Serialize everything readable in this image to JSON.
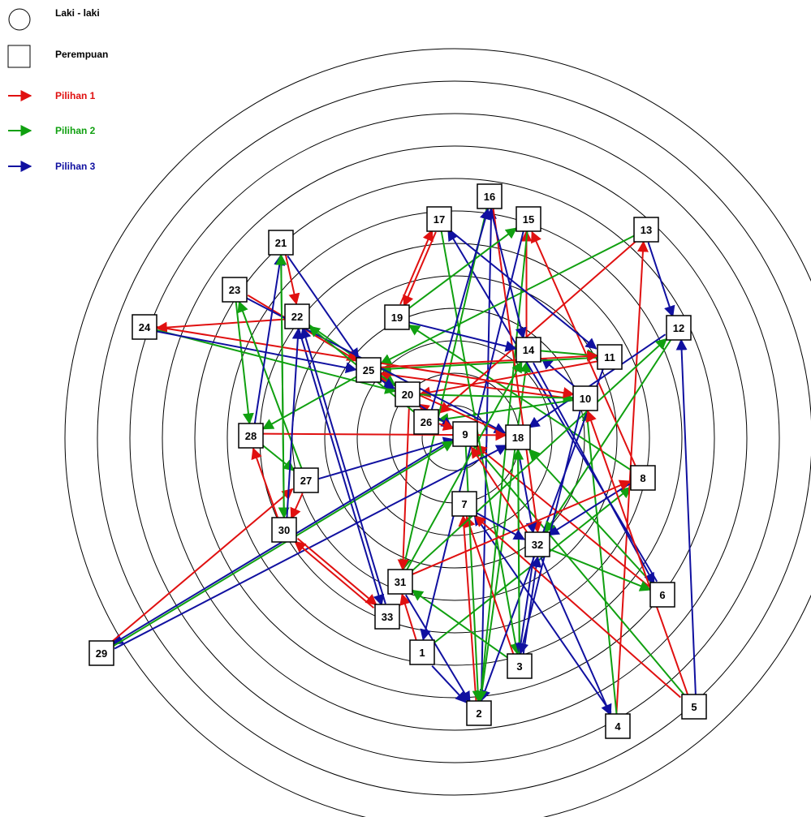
{
  "legend": {
    "male_label": "Laki - laki",
    "female_label": "Perempuan",
    "choice1_label": "Pilihan 1",
    "choice2_label": "Pilihan 2",
    "choice3_label": "Pilihan 3"
  },
  "colors": {
    "choice1": "#e01010",
    "choice2": "#10a010",
    "choice3": "#1010a0",
    "ring": "#000000",
    "node_fill": "#ffffff",
    "node_stroke": "#000000"
  },
  "nodes": [
    {
      "id": "1"
    },
    {
      "id": "2"
    },
    {
      "id": "3"
    },
    {
      "id": "4"
    },
    {
      "id": "5"
    },
    {
      "id": "6"
    },
    {
      "id": "7"
    },
    {
      "id": "8"
    },
    {
      "id": "9"
    },
    {
      "id": "10"
    },
    {
      "id": "11"
    },
    {
      "id": "12"
    },
    {
      "id": "13"
    },
    {
      "id": "14"
    },
    {
      "id": "15"
    },
    {
      "id": "16"
    },
    {
      "id": "17"
    },
    {
      "id": "18"
    },
    {
      "id": "19"
    },
    {
      "id": "20"
    },
    {
      "id": "21"
    },
    {
      "id": "22"
    },
    {
      "id": "23"
    },
    {
      "id": "24"
    },
    {
      "id": "25"
    },
    {
      "id": "26"
    },
    {
      "id": "27"
    },
    {
      "id": "28"
    },
    {
      "id": "29"
    },
    {
      "id": "30"
    },
    {
      "id": "31"
    },
    {
      "id": "32"
    },
    {
      "id": "33"
    }
  ],
  "edges": [
    {
      "from": "1",
      "to": "31",
      "choice": 1
    },
    {
      "from": "1",
      "to": "8",
      "choice": 2
    },
    {
      "from": "1",
      "to": "2",
      "choice": 3
    },
    {
      "from": "2",
      "to": "7",
      "choice": 1
    },
    {
      "from": "2",
      "to": "14",
      "choice": 2
    },
    {
      "from": "2",
      "to": "16",
      "choice": 3
    },
    {
      "from": "3",
      "to": "7",
      "choice": 1
    },
    {
      "from": "3",
      "to": "31",
      "choice": 2
    },
    {
      "from": "3",
      "to": "32",
      "choice": 3
    },
    {
      "from": "4",
      "to": "13",
      "choice": 1
    },
    {
      "from": "4",
      "to": "10",
      "choice": 2
    },
    {
      "from": "4",
      "to": "7",
      "choice": 3
    },
    {
      "from": "5",
      "to": "7",
      "choice": 1
    },
    {
      "from": "5",
      "to": "9",
      "choice": 2
    },
    {
      "from": "5",
      "to": "12",
      "choice": 3
    },
    {
      "from": "6",
      "to": "9",
      "choice": 1
    },
    {
      "from": "6",
      "to": "18",
      "choice": 2
    },
    {
      "from": "6",
      "to": "17",
      "choice": 3
    },
    {
      "from": "8",
      "to": "15",
      "choice": 1
    },
    {
      "from": "8",
      "to": "19",
      "choice": 2
    },
    {
      "from": "8",
      "to": "32",
      "choice": 3
    },
    {
      "from": "9",
      "to": "20",
      "choice": 1
    },
    {
      "from": "9",
      "to": "2",
      "choice": 2
    },
    {
      "from": "9",
      "to": "29",
      "choice": 3
    },
    {
      "from": "10",
      "to": "25",
      "choice": 1
    },
    {
      "from": "10",
      "to": "26",
      "choice": 2
    },
    {
      "from": "10",
      "to": "14",
      "choice": 3
    },
    {
      "from": "11",
      "to": "20",
      "choice": 1
    },
    {
      "from": "11",
      "to": "25",
      "choice": 2
    },
    {
      "from": "11",
      "to": "2",
      "choice": 3
    },
    {
      "from": "12",
      "to": "18",
      "choice": 3
    },
    {
      "from": "12",
      "to": "32",
      "choice": 2
    },
    {
      "from": "13",
      "to": "26",
      "choice": 1
    },
    {
      "from": "13",
      "to": "25",
      "choice": 2
    },
    {
      "from": "13",
      "to": "12",
      "choice": 3
    },
    {
      "from": "14",
      "to": "15",
      "choice": 1
    },
    {
      "from": "14",
      "to": "11",
      "choice": 2
    },
    {
      "from": "14",
      "to": "6",
      "choice": 3
    },
    {
      "from": "15",
      "to": "2",
      "choice": 2
    },
    {
      "from": "15",
      "to": "1",
      "choice": 3
    },
    {
      "from": "16",
      "to": "32",
      "choice": 1
    },
    {
      "from": "16",
      "to": "31",
      "choice": 2
    },
    {
      "from": "16",
      "to": "14",
      "choice": 3
    },
    {
      "from": "17",
      "to": "19",
      "choice": 1
    },
    {
      "from": "17",
      "to": "3",
      "choice": 2
    },
    {
      "from": "17",
      "to": "11",
      "choice": 3
    },
    {
      "from": "18",
      "to": "25",
      "choice": 1
    },
    {
      "from": "18",
      "to": "3",
      "choice": 2
    },
    {
      "from": "18",
      "to": "32",
      "choice": 3
    },
    {
      "from": "19",
      "to": "17",
      "choice": 1
    },
    {
      "from": "19",
      "to": "15",
      "choice": 2
    },
    {
      "from": "19",
      "to": "14",
      "choice": 3
    },
    {
      "from": "20",
      "to": "31",
      "choice": 1
    },
    {
      "from": "20",
      "to": "10",
      "choice": 2
    },
    {
      "from": "20",
      "to": "9",
      "choice": 3
    },
    {
      "from": "21",
      "to": "22",
      "choice": 1
    },
    {
      "from": "21",
      "to": "30",
      "choice": 2
    },
    {
      "from": "21",
      "to": "25",
      "choice": 3
    },
    {
      "from": "22",
      "to": "24",
      "choice": 1
    },
    {
      "from": "22",
      "to": "20",
      "choice": 2
    },
    {
      "from": "22",
      "to": "33",
      "choice": 3
    },
    {
      "from": "23",
      "to": "25",
      "choice": 1
    },
    {
      "from": "23",
      "to": "28",
      "choice": 2
    },
    {
      "from": "23",
      "to": "18",
      "choice": 3
    },
    {
      "from": "24",
      "to": "10",
      "choice": 1
    },
    {
      "from": "24",
      "to": "20",
      "choice": 2
    },
    {
      "from": "24",
      "to": "25",
      "choice": 3
    },
    {
      "from": "25",
      "to": "28",
      "choice": 2
    },
    {
      "from": "25",
      "to": "11",
      "choice": 1
    },
    {
      "from": "25",
      "to": "20",
      "choice": 3
    },
    {
      "from": "26",
      "to": "9",
      "choice": 1
    },
    {
      "from": "26",
      "to": "22",
      "choice": 2
    },
    {
      "from": "26",
      "to": "16",
      "choice": 3
    },
    {
      "from": "27",
      "to": "30",
      "choice": 1
    },
    {
      "from": "27",
      "to": "23",
      "choice": 2
    },
    {
      "from": "27",
      "to": "9",
      "choice": 3
    },
    {
      "from": "28",
      "to": "18",
      "choice": 1
    },
    {
      "from": "28",
      "to": "27",
      "choice": 2
    },
    {
      "from": "28",
      "to": "21",
      "choice": 3
    },
    {
      "from": "29",
      "to": "27",
      "choice": 1
    },
    {
      "from": "29",
      "to": "9",
      "choice": 2
    },
    {
      "from": "29",
      "to": "18",
      "choice": 3
    },
    {
      "from": "30",
      "to": "28",
      "choice": 1
    },
    {
      "from": "30",
      "to": "21",
      "choice": 2
    },
    {
      "from": "30",
      "to": "22",
      "choice": 3
    },
    {
      "from": "31",
      "to": "8",
      "choice": 1
    },
    {
      "from": "31",
      "to": "14",
      "choice": 2
    },
    {
      "from": "31",
      "to": "2",
      "choice": 3
    },
    {
      "from": "32",
      "to": "9",
      "choice": 1
    },
    {
      "from": "32",
      "to": "6",
      "choice": 2
    },
    {
      "from": "32",
      "to": "4",
      "choice": 3
    },
    {
      "from": "33",
      "to": "30",
      "choice": 1
    },
    {
      "from": "33",
      "to": "22",
      "choice": 3
    },
    {
      "from": "30",
      "to": "33",
      "choice": 1
    },
    {
      "from": "31",
      "to": "12",
      "choice": 2
    },
    {
      "from": "32",
      "to": "3",
      "choice": 3
    },
    {
      "from": "3",
      "to": "18",
      "choice": 2
    },
    {
      "from": "10",
      "to": "3",
      "choice": 3
    },
    {
      "from": "5",
      "to": "10",
      "choice": 1
    },
    {
      "from": "7",
      "to": "32",
      "choice": 3
    }
  ]
}
